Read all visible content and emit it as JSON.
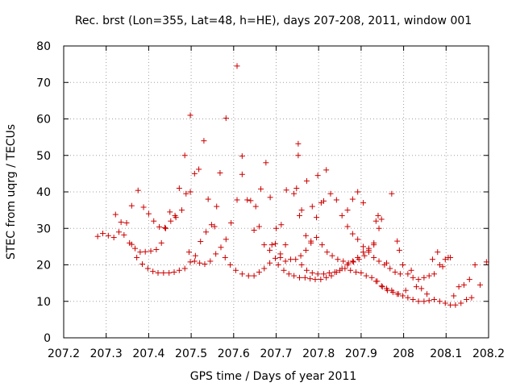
{
  "chart_data": {
    "type": "scatter",
    "title": "Rec. brst (Lon=355, Lat=48, h=HE), days 207-208, 2011, window 001",
    "xlabel": "GPS time / Days of year 2011",
    "ylabel": "STEC from uqrg / TECUs",
    "xlim": [
      207.2,
      208.2
    ],
    "ylim": [
      0,
      80
    ],
    "xticks": [
      "207.2",
      "207.3",
      "207.4",
      "207.5",
      "207.6",
      "207.7",
      "207.8",
      "207.9",
      "208",
      "208.1",
      "208.2"
    ],
    "yticks": [
      "0",
      "10",
      "20",
      "30",
      "40",
      "50",
      "60",
      "70",
      "80"
    ],
    "grid": true,
    "marker": "+",
    "color": "#cc0000",
    "series": [
      {
        "name": "STEC",
        "points": [
          [
            207.28,
            27.8
          ],
          [
            207.292,
            28.6
          ],
          [
            207.305,
            28.0
          ],
          [
            207.318,
            27.5
          ],
          [
            207.33,
            29.0
          ],
          [
            207.342,
            28.2
          ],
          [
            207.355,
            26.0
          ],
          [
            207.368,
            24.5
          ],
          [
            207.38,
            23.5
          ],
          [
            207.392,
            23.6
          ],
          [
            207.405,
            23.8
          ],
          [
            207.418,
            24.2
          ],
          [
            207.43,
            26.0
          ],
          [
            207.44,
            30.0
          ],
          [
            207.452,
            32.0
          ],
          [
            207.464,
            33.0
          ],
          [
            207.478,
            35.0
          ],
          [
            207.488,
            39.5
          ],
          [
            207.498,
            40.0
          ],
          [
            207.322,
            33.8
          ],
          [
            207.335,
            31.7
          ],
          [
            207.348,
            31.5
          ],
          [
            207.36,
            36.2
          ],
          [
            207.375,
            40.4
          ],
          [
            207.388,
            35.8
          ],
          [
            207.4,
            34.0
          ],
          [
            207.412,
            32.0
          ],
          [
            207.425,
            30.4
          ],
          [
            207.438,
            30.2
          ],
          [
            207.45,
            34.5
          ],
          [
            207.462,
            33.5
          ],
          [
            207.472,
            41.0
          ],
          [
            207.485,
            50.0
          ],
          [
            207.498,
            61.0
          ],
          [
            207.36,
            25.6
          ],
          [
            207.372,
            22.0
          ],
          [
            207.385,
            20.2
          ],
          [
            207.398,
            19.0
          ],
          [
            207.41,
            18.2
          ],
          [
            207.422,
            17.8
          ],
          [
            207.435,
            17.8
          ],
          [
            207.448,
            17.8
          ],
          [
            207.46,
            18.0
          ],
          [
            207.472,
            18.5
          ],
          [
            207.485,
            19.0
          ],
          [
            207.498,
            20.8
          ],
          [
            207.51,
            22.5
          ],
          [
            207.522,
            26.4
          ],
          [
            207.535,
            29.0
          ],
          [
            207.548,
            31.0
          ],
          [
            207.56,
            36.0
          ],
          [
            207.495,
            23.5
          ],
          [
            207.508,
            21.0
          ],
          [
            207.52,
            20.5
          ],
          [
            207.532,
            20.2
          ],
          [
            207.545,
            21.0
          ],
          [
            207.558,
            23.0
          ],
          [
            207.57,
            24.8
          ],
          [
            207.582,
            27.0
          ],
          [
            207.594,
            31.5
          ],
          [
            207.608,
            37.8
          ],
          [
            207.62,
            49.8
          ],
          [
            207.632,
            37.8
          ],
          [
            207.508,
            45.0
          ],
          [
            207.518,
            46.2
          ],
          [
            207.53,
            54.0
          ],
          [
            207.54,
            38.0
          ],
          [
            207.555,
            30.5
          ],
          [
            207.568,
            45.2
          ],
          [
            207.582,
            60.2
          ],
          [
            207.608,
            74.5
          ],
          [
            207.58,
            22.0
          ],
          [
            207.592,
            20.0
          ],
          [
            207.605,
            18.5
          ],
          [
            207.62,
            17.5
          ],
          [
            207.635,
            17.0
          ],
          [
            207.648,
            17.0
          ],
          [
            207.66,
            18.0
          ],
          [
            207.672,
            19.0
          ],
          [
            207.685,
            20.5
          ],
          [
            207.698,
            21.8
          ],
          [
            207.71,
            23.0
          ],
          [
            207.722,
            25.5
          ],
          [
            207.62,
            44.8
          ],
          [
            207.64,
            37.6
          ],
          [
            207.652,
            36.0
          ],
          [
            207.664,
            40.8
          ],
          [
            207.676,
            48.0
          ],
          [
            207.686,
            38.5
          ],
          [
            207.7,
            30.0
          ],
          [
            207.712,
            31.0
          ],
          [
            207.724,
            40.5
          ],
          [
            207.648,
            29.5
          ],
          [
            207.66,
            30.5
          ],
          [
            207.672,
            25.5
          ],
          [
            207.685,
            24.0
          ],
          [
            207.698,
            25.8
          ],
          [
            207.71,
            22.0
          ],
          [
            207.722,
            21.0
          ],
          [
            207.734,
            21.5
          ],
          [
            207.746,
            21.5
          ],
          [
            207.758,
            22.5
          ],
          [
            207.77,
            24.0
          ],
          [
            207.782,
            26.0
          ],
          [
            207.795,
            33.0
          ],
          [
            207.806,
            37.0
          ],
          [
            207.818,
            46.0
          ],
          [
            207.69,
            25.5
          ],
          [
            207.705,
            20.0
          ],
          [
            207.718,
            18.5
          ],
          [
            207.73,
            17.5
          ],
          [
            207.742,
            17.0
          ],
          [
            207.755,
            16.5
          ],
          [
            207.768,
            16.5
          ],
          [
            207.78,
            16.2
          ],
          [
            207.792,
            16.0
          ],
          [
            207.805,
            16.0
          ],
          [
            207.818,
            16.5
          ],
          [
            207.83,
            17.0
          ],
          [
            207.842,
            18.0
          ],
          [
            207.855,
            19.0
          ],
          [
            207.868,
            20.0
          ],
          [
            207.88,
            21.0
          ],
          [
            207.892,
            22.0
          ],
          [
            207.905,
            23.5
          ],
          [
            207.918,
            24.5
          ],
          [
            207.93,
            25.5
          ],
          [
            207.942,
            30.0
          ],
          [
            207.742,
            39.5
          ],
          [
            207.748,
            41.0
          ],
          [
            207.752,
            53.2
          ],
          [
            207.76,
            35.0
          ],
          [
            207.772,
            43.0
          ],
          [
            207.785,
            36.0
          ],
          [
            207.798,
            44.5
          ],
          [
            207.812,
            37.5
          ],
          [
            207.828,
            39.5
          ],
          [
            207.842,
            37.8
          ],
          [
            207.855,
            33.5
          ],
          [
            207.868,
            35.0
          ],
          [
            207.88,
            38.0
          ],
          [
            207.892,
            40.0
          ],
          [
            207.905,
            37.0
          ],
          [
            207.752,
            50.0
          ],
          [
            207.755,
            33.5
          ],
          [
            207.77,
            28.0
          ],
          [
            207.782,
            26.5
          ],
          [
            207.795,
            27.5
          ],
          [
            207.808,
            25.5
          ],
          [
            207.82,
            23.5
          ],
          [
            207.832,
            22.5
          ],
          [
            207.845,
            21.5
          ],
          [
            207.858,
            21.0
          ],
          [
            207.87,
            20.5
          ],
          [
            207.882,
            20.8
          ],
          [
            207.895,
            21.5
          ],
          [
            207.908,
            22.5
          ],
          [
            207.918,
            24.0
          ],
          [
            207.93,
            26.0
          ],
          [
            207.94,
            33.5
          ],
          [
            207.76,
            20.0
          ],
          [
            207.772,
            18.5
          ],
          [
            207.785,
            17.8
          ],
          [
            207.798,
            17.5
          ],
          [
            207.812,
            17.5
          ],
          [
            207.825,
            17.8
          ],
          [
            207.838,
            18.0
          ],
          [
            207.85,
            18.5
          ],
          [
            207.862,
            19.0
          ],
          [
            207.875,
            18.5
          ],
          [
            207.888,
            18.0
          ],
          [
            207.9,
            17.8
          ],
          [
            207.912,
            17.0
          ],
          [
            207.925,
            16.5
          ],
          [
            207.938,
            15.5
          ],
          [
            207.95,
            14.0
          ],
          [
            207.962,
            13.0
          ],
          [
            207.975,
            12.5
          ],
          [
            207.988,
            12.0
          ],
          [
            207.868,
            30.5
          ],
          [
            207.88,
            28.5
          ],
          [
            207.892,
            27.0
          ],
          [
            207.905,
            25.0
          ],
          [
            207.918,
            23.5
          ],
          [
            207.93,
            22.0
          ],
          [
            207.942,
            21.0
          ],
          [
            207.955,
            20.0
          ],
          [
            207.968,
            19.0
          ],
          [
            207.98,
            18.0
          ],
          [
            207.992,
            17.5
          ],
          [
            207.935,
            32.0
          ],
          [
            207.948,
            32.5
          ],
          [
            207.96,
            20.5
          ],
          [
            207.972,
            39.5
          ],
          [
            207.985,
            26.5
          ],
          [
            207.998,
            20.0
          ],
          [
            208.01,
            17.5
          ],
          [
            208.022,
            16.5
          ],
          [
            208.035,
            16.0
          ],
          [
            208.048,
            16.5
          ],
          [
            208.06,
            17.0
          ],
          [
            208.072,
            17.5
          ],
          [
            208.085,
            20.0
          ],
          [
            208.098,
            21.5
          ],
          [
            208.11,
            22.0
          ],
          [
            207.935,
            15.5
          ],
          [
            207.948,
            14.2
          ],
          [
            207.96,
            13.5
          ],
          [
            207.972,
            13.0
          ],
          [
            207.985,
            12.0
          ],
          [
            207.998,
            11.5
          ],
          [
            208.01,
            11.0
          ],
          [
            208.022,
            10.5
          ],
          [
            208.035,
            10.0
          ],
          [
            208.048,
            10.0
          ],
          [
            208.06,
            10.2
          ],
          [
            208.072,
            10.5
          ],
          [
            208.085,
            10.0
          ],
          [
            208.098,
            9.5
          ],
          [
            208.11,
            9.0
          ],
          [
            208.122,
            9.0
          ],
          [
            208.135,
            9.5
          ],
          [
            208.148,
            10.5
          ],
          [
            208.16,
            11.0
          ],
          [
            207.99,
            24.0
          ],
          [
            208.005,
            13.0
          ],
          [
            208.018,
            18.5
          ],
          [
            208.03,
            14.0
          ],
          [
            208.042,
            13.5
          ],
          [
            208.055,
            12.0
          ],
          [
            208.068,
            21.5
          ],
          [
            208.08,
            23.5
          ],
          [
            208.092,
            19.5
          ],
          [
            208.105,
            22.0
          ],
          [
            208.118,
            11.5
          ],
          [
            208.13,
            14.0
          ],
          [
            208.142,
            14.5
          ],
          [
            208.155,
            16.0
          ],
          [
            208.168,
            20.0
          ],
          [
            208.18,
            14.5
          ],
          [
            208.195,
            20.8
          ]
        ]
      }
    ]
  }
}
